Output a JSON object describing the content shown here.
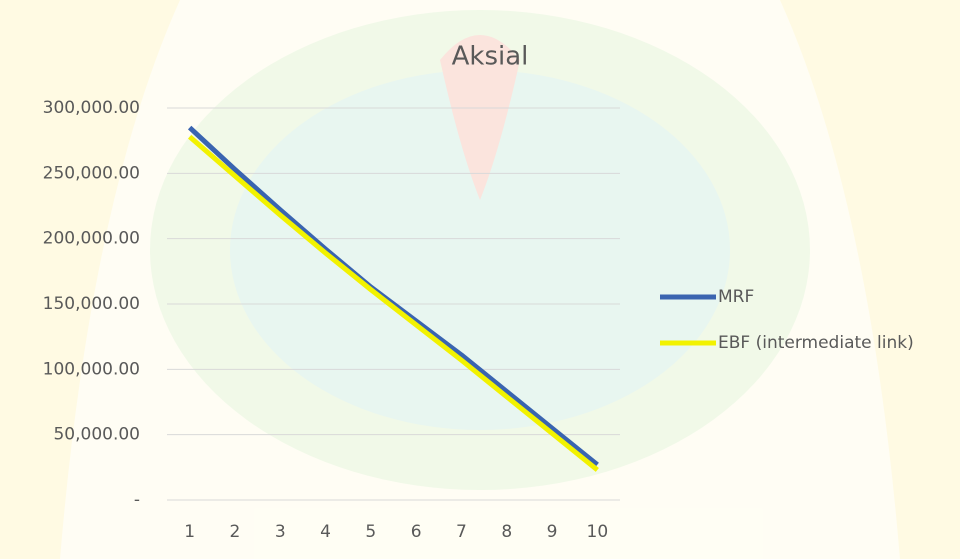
{
  "chart_data": {
    "type": "line",
    "title": "Aksial",
    "categories": [
      "1",
      "2",
      "3",
      "4",
      "5",
      "6",
      "7",
      "8",
      "9",
      "10"
    ],
    "series": [
      {
        "name": "MRF",
        "color": "#3a64b0",
        "values": [
          285000,
          253000,
          222000,
          192000,
          163000,
          137000,
          111000,
          83000,
          55000,
          27000
        ]
      },
      {
        "name": "EBF (intermediate link)",
        "color": "#f2f200",
        "values": [
          278000,
          248000,
          218000,
          189000,
          161000,
          134000,
          107000,
          79000,
          51000,
          23000
        ]
      }
    ],
    "ylim": [
      0,
      300000
    ],
    "yticks": [
      {
        "value": 0,
        "label": "-"
      },
      {
        "value": 50000,
        "label": "50,000.00"
      },
      {
        "value": 100000,
        "label": "100,000.00"
      },
      {
        "value": 150000,
        "label": "150,000.00"
      },
      {
        "value": 200000,
        "label": "200,000.00"
      },
      {
        "value": 250000,
        "label": "250,000.00"
      },
      {
        "value": 300000,
        "label": "300,000.00"
      }
    ],
    "grid": true,
    "legend": "right"
  }
}
